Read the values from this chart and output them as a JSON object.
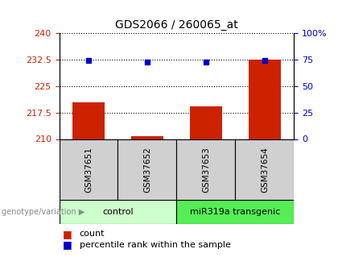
{
  "title": "GDS2066 / 260065_at",
  "samples": [
    "GSM37651",
    "GSM37652",
    "GSM37653",
    "GSM37654"
  ],
  "count_values": [
    220.5,
    210.8,
    219.2,
    232.6
  ],
  "percentile_values": [
    232.2,
    231.8,
    231.8,
    232.4
  ],
  "ylim_left": [
    210,
    240
  ],
  "ylim_right": [
    0,
    100
  ],
  "yticks_left": [
    210,
    217.5,
    225,
    232.5,
    240
  ],
  "yticks_right": [
    0,
    25,
    50,
    75,
    100
  ],
  "ytick_labels_left": [
    "210",
    "217.5",
    "225",
    "232.5",
    "240"
  ],
  "ytick_labels_right": [
    "0",
    "25",
    "50",
    "75",
    "100%"
  ],
  "bar_color": "#cc2200",
  "dot_color": "#0000cc",
  "groups": [
    {
      "label": "control",
      "samples": [
        0,
        1
      ],
      "color": "#ccffcc"
    },
    {
      "label": "miR319a transgenic",
      "samples": [
        2,
        3
      ],
      "color": "#55ee55"
    }
  ],
  "legend_count_label": "count",
  "legend_pct_label": "percentile rank within the sample",
  "genotype_label": "genotype/variation"
}
